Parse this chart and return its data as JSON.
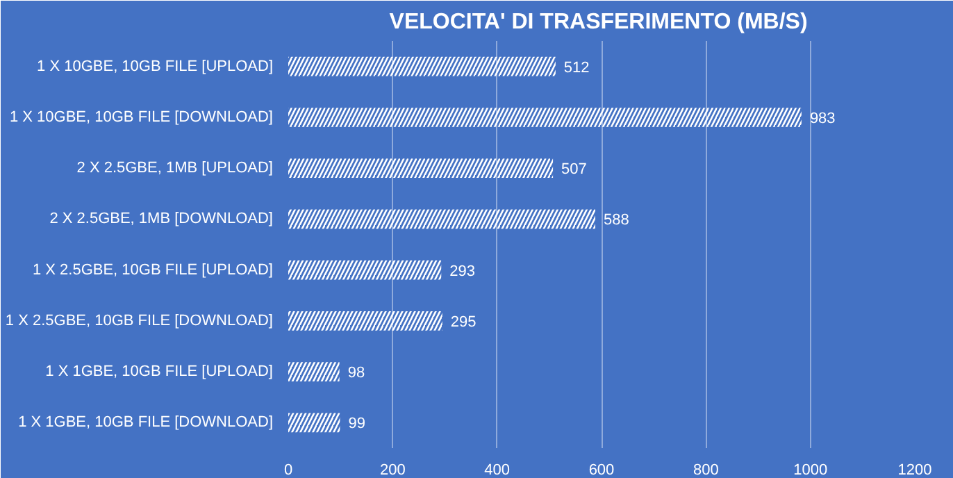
{
  "chart_data": {
    "type": "bar",
    "orientation": "horizontal",
    "title": "VELOCITA' DI TRASFERIMENTO  (MB/S)",
    "categories": [
      "1 X 10GBE, 10GB FILE [UPLOAD]",
      "1 X 10GBE, 10GB FILE [DOWNLOAD]",
      "2 X 2.5GBE, 1MB [UPLOAD]",
      "2 X 2.5GBE, 1MB [DOWNLOAD]",
      "1 X 2.5GBE, 10GB FILE [UPLOAD]",
      "1 X 2.5GBE, 10GB FILE [DOWNLOAD]",
      "1 X 1GBE, 10GB FILE [UPLOAD]",
      "1 X 1GBE, 10GB FILE [DOWNLOAD]"
    ],
    "values": [
      512,
      983,
      507,
      588,
      293,
      295,
      98,
      99
    ],
    "color": "#ffffff",
    "xlim": [
      0,
      1200
    ],
    "xticks": [
      0,
      200,
      400,
      600,
      800,
      1000,
      1200
    ],
    "grid": "x",
    "data_labels": true
  }
}
